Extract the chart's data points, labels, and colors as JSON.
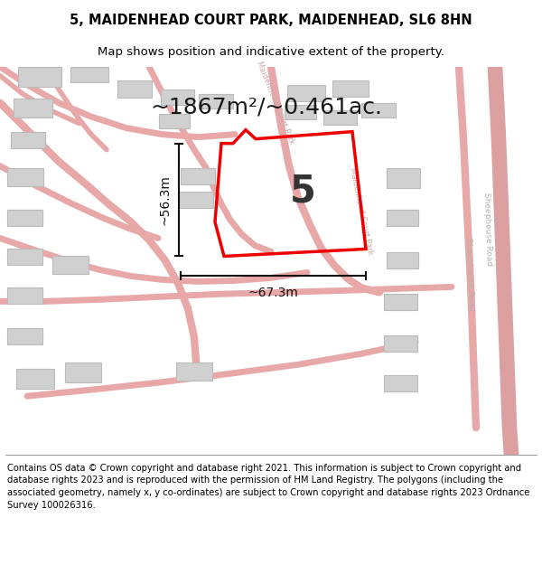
{
  "title_line1": "5, MAIDENHEAD COURT PARK, MAIDENHEAD, SL6 8HN",
  "title_line2": "Map shows position and indicative extent of the property.",
  "area_text": "~1867m²/~0.461ac.",
  "number_label": "5",
  "width_label": "~67.3m",
  "height_label": "~56.3m",
  "footer_text": "Contains OS data © Crown copyright and database right 2021. This information is subject to Crown copyright and database rights 2023 and is reproduced with the permission of HM Land Registry. The polygons (including the associated geometry, namely x, y co-ordinates) are subject to Crown copyright and database rights 2023 Ordnance Survey 100026316.",
  "bg_color": "#ffffff",
  "map_bg_color": "#fdf4f4",
  "road_color": "#e8a8a8",
  "building_color": "#d0d0d0",
  "building_edge_color": "#bbbbbb",
  "property_edge_color": "#ee0000",
  "road_label_color": "#c8a8a8",
  "sheephouse_label_color": "#b8b0b0",
  "dim_color": "#111111",
  "title_color": "#000000",
  "footer_color": "#000000"
}
